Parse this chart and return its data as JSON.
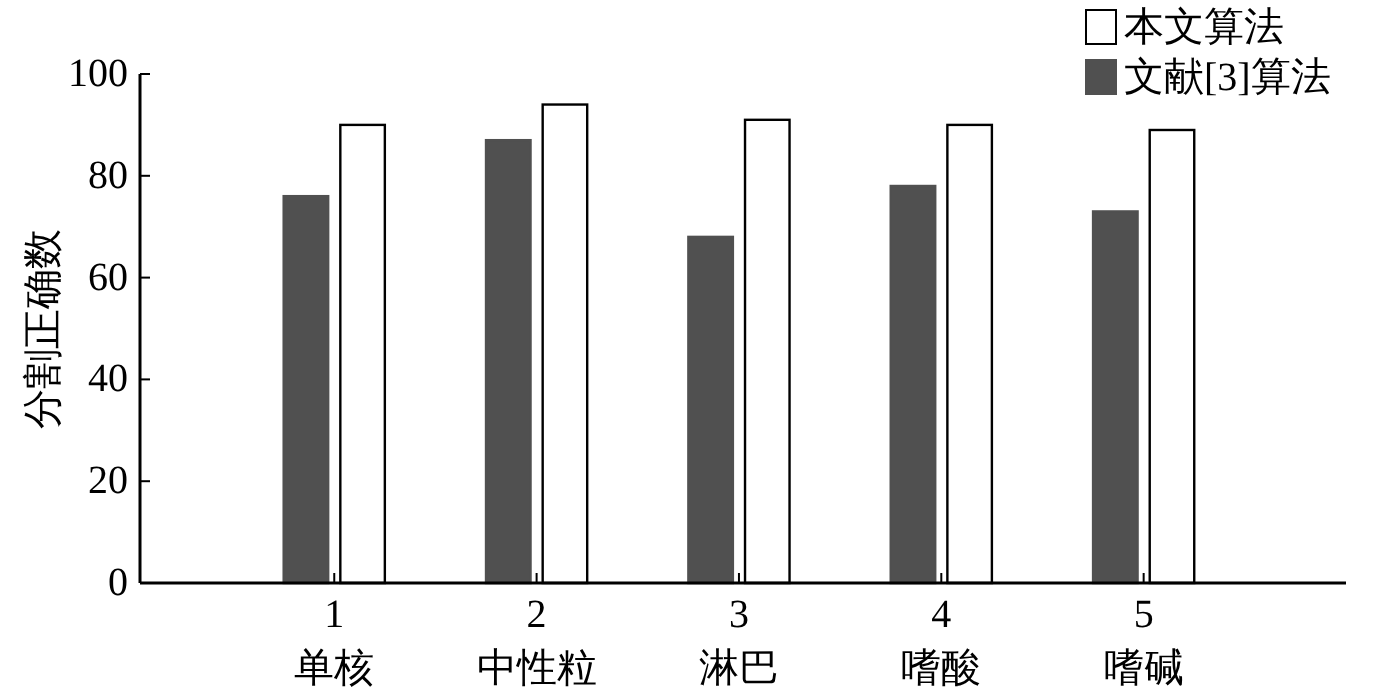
{
  "chart_data": {
    "type": "bar",
    "ylabel": "分割正确数",
    "categories": [
      "1\n单核",
      "2\n中性粒",
      "3\n淋巴",
      "4\n嗜酸",
      "5\n嗜碱"
    ],
    "series": [
      {
        "name": "文献[3]算法",
        "color": "#505050",
        "values": [
          76,
          87,
          68,
          78,
          73
        ]
      },
      {
        "name": "本文算法",
        "color": "#ffffff",
        "values": [
          90,
          94,
          91,
          90,
          89
        ]
      }
    ],
    "ylim": [
      0,
      100
    ],
    "yticks": [
      0,
      20,
      40,
      60,
      80,
      100
    ],
    "legend": "top right"
  }
}
